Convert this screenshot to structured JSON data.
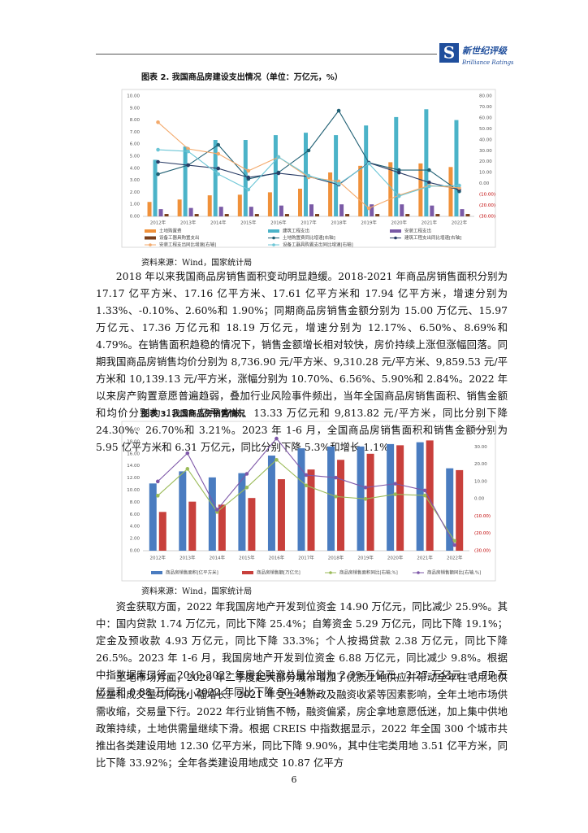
{
  "header": {
    "logo_mark": "S",
    "brand": "新世纪评级",
    "brand_en": "Brilliance Ratings"
  },
  "chart_data": [
    {
      "type": "bar",
      "title": "图表 2.  我国商品房建设支出情况（单位：万亿元，%）",
      "categories": [
        "2012年",
        "2013年",
        "2014年",
        "2015年",
        "2016年",
        "2017年",
        "2018年",
        "2019年",
        "2020年",
        "2021年",
        "2022年"
      ],
      "series": [
        {
          "name": "土地购置费",
          "type": "bar",
          "color": "#f0913a",
          "values": [
            1.2,
            1.4,
            1.75,
            1.8,
            2.0,
            2.3,
            3.65,
            4.2,
            4.5,
            4.4,
            4.1
          ]
        },
        {
          "name": "建筑工程支出",
          "type": "bar",
          "color": "#4bb3c8",
          "values": [
            4.7,
            5.8,
            6.35,
            6.35,
            6.75,
            6.95,
            6.75,
            7.55,
            8.25,
            8.9,
            8.0
          ]
        },
        {
          "name": "安装工程支出",
          "type": "bar",
          "color": "#7a5aa6",
          "values": [
            0.6,
            0.7,
            0.8,
            0.8,
            0.9,
            1.0,
            1.0,
            1.0,
            1.0,
            0.9,
            0.6
          ]
        },
        {
          "name": "设备工器具购置支出",
          "type": "bar",
          "color": "#7b3f1a",
          "values": [
            0.2,
            0.2,
            0.2,
            0.2,
            0.2,
            0.2,
            0.2,
            0.2,
            0.2,
            0.2,
            0.2
          ]
        },
        {
          "name": "土地购置费同比增速[右轴]",
          "type": "line",
          "axis": "y2",
          "color": "#1f5f73",
          "values": [
            8.6,
            16.8,
            35.4,
            4.2,
            10.1,
            30.2,
            66.6,
            19.0,
            12.3,
            12.3,
            -7.1
          ]
        },
        {
          "name": "建筑工程支出同比增速[右轴]",
          "type": "line",
          "axis": "y2",
          "color": "#2a3d66",
          "values": [
            19.8,
            16.8,
            13.8,
            5.6,
            9.4,
            6.4,
            -1.0,
            19.0,
            10.0,
            1.0,
            -5.5
          ]
        },
        {
          "name": "安装工程支出同比增速[右轴]",
          "type": "line",
          "axis": "y2",
          "color": "#f3a96b",
          "values": [
            56.0,
            31.7,
            27.2,
            11.6,
            24.2,
            5.7,
            2.0,
            -22.6,
            -10.7,
            -1.8,
            -4.0
          ]
        },
        {
          "name": "设备工器具购置支出同比增速[右轴]",
          "type": "line",
          "axis": "y2",
          "color": "#6cc6d6",
          "values": [
            30.9,
            29.4,
            8.6,
            -5.5,
            24.2,
            7.1,
            -0.3,
            18.3,
            -11.5,
            -2.5,
            -1.8
          ]
        }
      ],
      "ylim": [
        0,
        10
      ],
      "yticks": [
        {
          "value": 0,
          "label": "0.00"
        },
        {
          "value": 1,
          "label": "1.00"
        },
        {
          "value": 2,
          "label": "2.00"
        },
        {
          "value": 3,
          "label": "3.00"
        },
        {
          "value": 4,
          "label": "4.00"
        },
        {
          "value": 5,
          "label": "5.00"
        },
        {
          "value": 6,
          "label": "6.00"
        },
        {
          "value": 7,
          "label": "7.00"
        },
        {
          "value": 8,
          "label": "8.00"
        },
        {
          "value": 9,
          "label": "9.00"
        },
        {
          "value": 10,
          "label": "10.00"
        }
      ],
      "y2lim": [
        -30,
        80
      ],
      "y2ticks": [
        {
          "value": -30,
          "label": "(30.00)"
        },
        {
          "value": -20,
          "label": "(20.00)"
        },
        {
          "value": -10,
          "label": "(10.00)"
        },
        {
          "value": 0,
          "label": "0.00"
        },
        {
          "value": 10,
          "label": "10.00"
        },
        {
          "value": 20,
          "label": "20.00"
        },
        {
          "value": 30,
          "label": "30.00"
        },
        {
          "value": 40,
          "label": "40.00"
        },
        {
          "value": 50,
          "label": "50.00"
        },
        {
          "value": 60,
          "label": "60.00"
        },
        {
          "value": 70,
          "label": "70.00"
        },
        {
          "value": 80,
          "label": "80.00"
        }
      ],
      "source": "资料来源：Wind，国家统计局"
    },
    {
      "type": "bar",
      "title": "图表 3.  我国商品房销售情况",
      "categories": [
        "2012年",
        "2013年",
        "2014年",
        "2015年",
        "2016年",
        "2017年",
        "2018年",
        "2019年",
        "2020年",
        "2021年",
        "2022年"
      ],
      "series": [
        {
          "name": "商品房销售面积[亿平方米]",
          "type": "bar",
          "color": "#4a7cc0",
          "values": [
            11.1,
            13.1,
            12.1,
            12.8,
            15.7,
            16.9,
            17.2,
            17.2,
            17.6,
            17.9,
            13.6
          ]
        },
        {
          "name": "商品房销售额[万亿元]",
          "type": "bar",
          "color": "#c8403c",
          "values": [
            6.4,
            8.1,
            7.6,
            8.7,
            11.8,
            13.4,
            15.0,
            16.0,
            17.4,
            18.2,
            13.3
          ]
        },
        {
          "name": "商品房销售面积同比[右轴,%]",
          "type": "line",
          "axis": "y2",
          "color": "#9bbb59",
          "values": [
            1.8,
            17.3,
            -7.6,
            6.5,
            22.5,
            7.7,
            1.3,
            -0.1,
            2.6,
            1.9,
            -24.3
          ]
        },
        {
          "name": "商品房销售额同比[右轴,%]",
          "type": "line",
          "axis": "y2",
          "color": "#7e57a8",
          "values": [
            10.0,
            26.3,
            -6.3,
            14.4,
            34.8,
            13.7,
            12.2,
            6.5,
            8.7,
            4.8,
            -26.7
          ]
        }
      ],
      "ylim": [
        0,
        20
      ],
      "yticks": [
        {
          "value": 0,
          "label": "0.00"
        },
        {
          "value": 2,
          "label": "2.00"
        },
        {
          "value": 4,
          "label": "4.00"
        },
        {
          "value": 6,
          "label": "6.00"
        },
        {
          "value": 8,
          "label": "8.00"
        },
        {
          "value": 10,
          "label": "10.00"
        },
        {
          "value": 12,
          "label": "12.00"
        },
        {
          "value": 14,
          "label": "14.00"
        },
        {
          "value": 16,
          "label": "16.00"
        },
        {
          "value": 18,
          "label": "18.00"
        },
        {
          "value": 20,
          "label": "20.00"
        }
      ],
      "y2lim": [
        -30,
        40
      ],
      "y2ticks": [
        {
          "value": -30,
          "label": "(30.00)"
        },
        {
          "value": -20,
          "label": "(20.00)"
        },
        {
          "value": -10,
          "label": "(10.00)"
        },
        {
          "value": 0,
          "label": "0.00"
        },
        {
          "value": 10,
          "label": "10.00"
        },
        {
          "value": 20,
          "label": "20.00"
        },
        {
          "value": 30,
          "label": "30.00"
        },
        {
          "value": 40,
          "label": "40.00"
        }
      ],
      "source": "资料来源：Wind，国家统计局"
    }
  ],
  "paragraphs": [
    "2018 年以来我国商品房销售面积变动明显趋缓。2018-2021 年商品房销售面积分别为 17.17 亿平方米、17.16 亿平方米、17.61 亿平方米和 17.94 亿平方米，增速分别为 1.33%、-0.10%、2.60%和 1.90%；同期商品房销售金额分别为 15.00 万亿元、15.97 万亿元、17.36 万亿元和 18.19 万亿元，增速分别为 12.17%、6.50%、8.69%和 4.79%。在销售面积趋稳的情况下，销售金额增长相对较快，房价持续上涨但涨幅回落。同期我国商品房销售均价分别为 8,736.90 元/平方米、9,310.28 元/平方米、9,859.53 元/平方米和 10,139.13 元/平方米，涨幅分别为 10.70%、6.56%、5.90%和 2.84%。2022 年以来房产购置意愿普遍趋弱，叠加行业风险事件频出，当年全国商品房销售面积、销售金额和均价分别为 13.58 亿平方米、13.33 万亿元和 9,813.82 元/平方米，同比分别下降 24.30%、26.70%和 3.21%。2023 年 1-6 月，全国商品房销售面积和销售金额分别为 5.95 亿平方米和 6.31 万亿元，同比分别下降 5.3%和增长 1.1%。",
    "资金获取方面，2022 年我国房地产开发到位资金 14.90 万亿元，同比减少 25.9%。其中：国内贷款 1.74 万亿元，同比下降 25.4%；自筹资金 5.29 万亿元，同比下降 19.1%；定金及预收款 4.93 万亿元，同比下降 33.3%；个人按揭贷款 2.38 万亿元，同比下降 26.5%。2023 年 1-6 月，我国房地产开发到位资金 6.88 万亿元，同比减少 9.8%。根据中指数据库口径，2019-2022 年房企融资总量分别为 2.39 万亿元、2.27 万亿元、1.77 万亿元和 0.88 万亿元，2022 年同比下降 50.24%。",
    "土地市场方面，2020 年二季度起大部分城市增加了优质土地供应并带动全年住宅用地供应量和成交量均同比小幅增长。2021 年受土地新政及融资收紧等因素影响，全年土地市场供需收缩，交易量下行。2022 年行业销售不畅，融资偏紧，房企拿地意愿低迷，加上集中供地政策持续，土地供需量继续下滑。根据 CREIS 中指数据显示，2022 年全国 300 个城市共推出各类建设用地 12.30 亿平方米，同比下降 9.90%，其中住宅类用地 3.51 亿平方米，同比下降 33.92%；全年各类建设用地成交 10.87 亿平方"
  ],
  "page_number": "6"
}
